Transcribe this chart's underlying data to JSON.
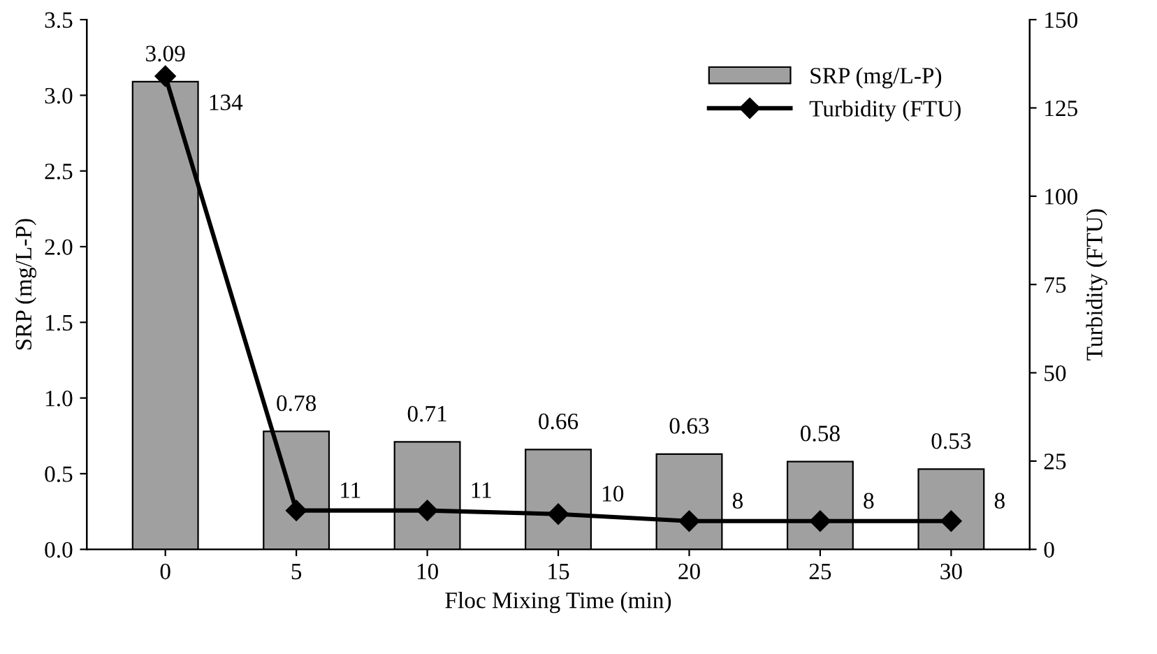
{
  "chart_data": {
    "type": "bar",
    "categories": [
      "0",
      "5",
      "10",
      "15",
      "20",
      "25",
      "30"
    ],
    "xlabel": "Floc Mixing Time (min)",
    "ylabel": "SRP (mg/L-P)",
    "y2label": "Turbidity (FTU)",
    "series": [
      {
        "name": "SRP (mg/L-P)",
        "color": "#a0a0a0",
        "values": [
          3.09,
          0.78,
          0.71,
          0.66,
          0.63,
          0.58,
          0.53
        ]
      },
      {
        "name": "Turbidity (FTU)",
        "type": "line",
        "axis": "y2",
        "color": "#000000",
        "values": [
          134,
          11,
          11,
          10,
          8,
          8,
          8
        ]
      }
    ],
    "ylim": [
      0,
      3.5
    ],
    "yticks": [
      {
        "value": 0,
        "label": "0.0"
      },
      {
        "value": 0.5,
        "label": "0.5"
      },
      {
        "value": 1,
        "label": "1.0"
      },
      {
        "value": 1.5,
        "label": "1.5"
      },
      {
        "value": 2,
        "label": "2.0"
      },
      {
        "value": 2.5,
        "label": "2.5"
      },
      {
        "value": 3,
        "label": "3.0"
      },
      {
        "value": 3.5,
        "label": "3.5"
      }
    ],
    "y2lim": [
      0,
      150
    ],
    "y2ticks": [
      0,
      25,
      50,
      75,
      100,
      125,
      150
    ],
    "data_labels": true,
    "legend": "top right",
    "grid": false,
    "marker": "diamond",
    "line_style": "solid"
  }
}
